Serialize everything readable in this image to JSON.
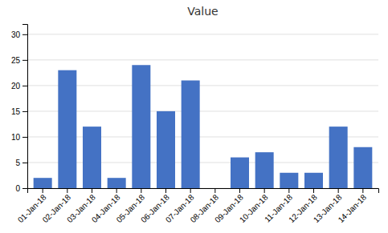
{
  "chart_data": {
    "type": "bar",
    "title": "Value",
    "categories": [
      "01-Jan-18",
      "02-Jan-18",
      "03-Jan-18",
      "04-Jan-18",
      "05-Jan-18",
      "06-Jan-18",
      "07-Jan-18",
      "08-Jan-18",
      "09-Jan-18",
      "10-Jan-18",
      "11-Jan-18",
      "12-Jan-18",
      "13-Jan-18",
      "14-Jan-18"
    ],
    "values": [
      2,
      23,
      12,
      2,
      24,
      15,
      21,
      0,
      6,
      7,
      3,
      3,
      12,
      8
    ],
    "color": "#4472C4",
    "ylim": [
      0,
      32
    ],
    "yticks": [
      0,
      5,
      10,
      15,
      20,
      25,
      30
    ],
    "grid": true
  }
}
